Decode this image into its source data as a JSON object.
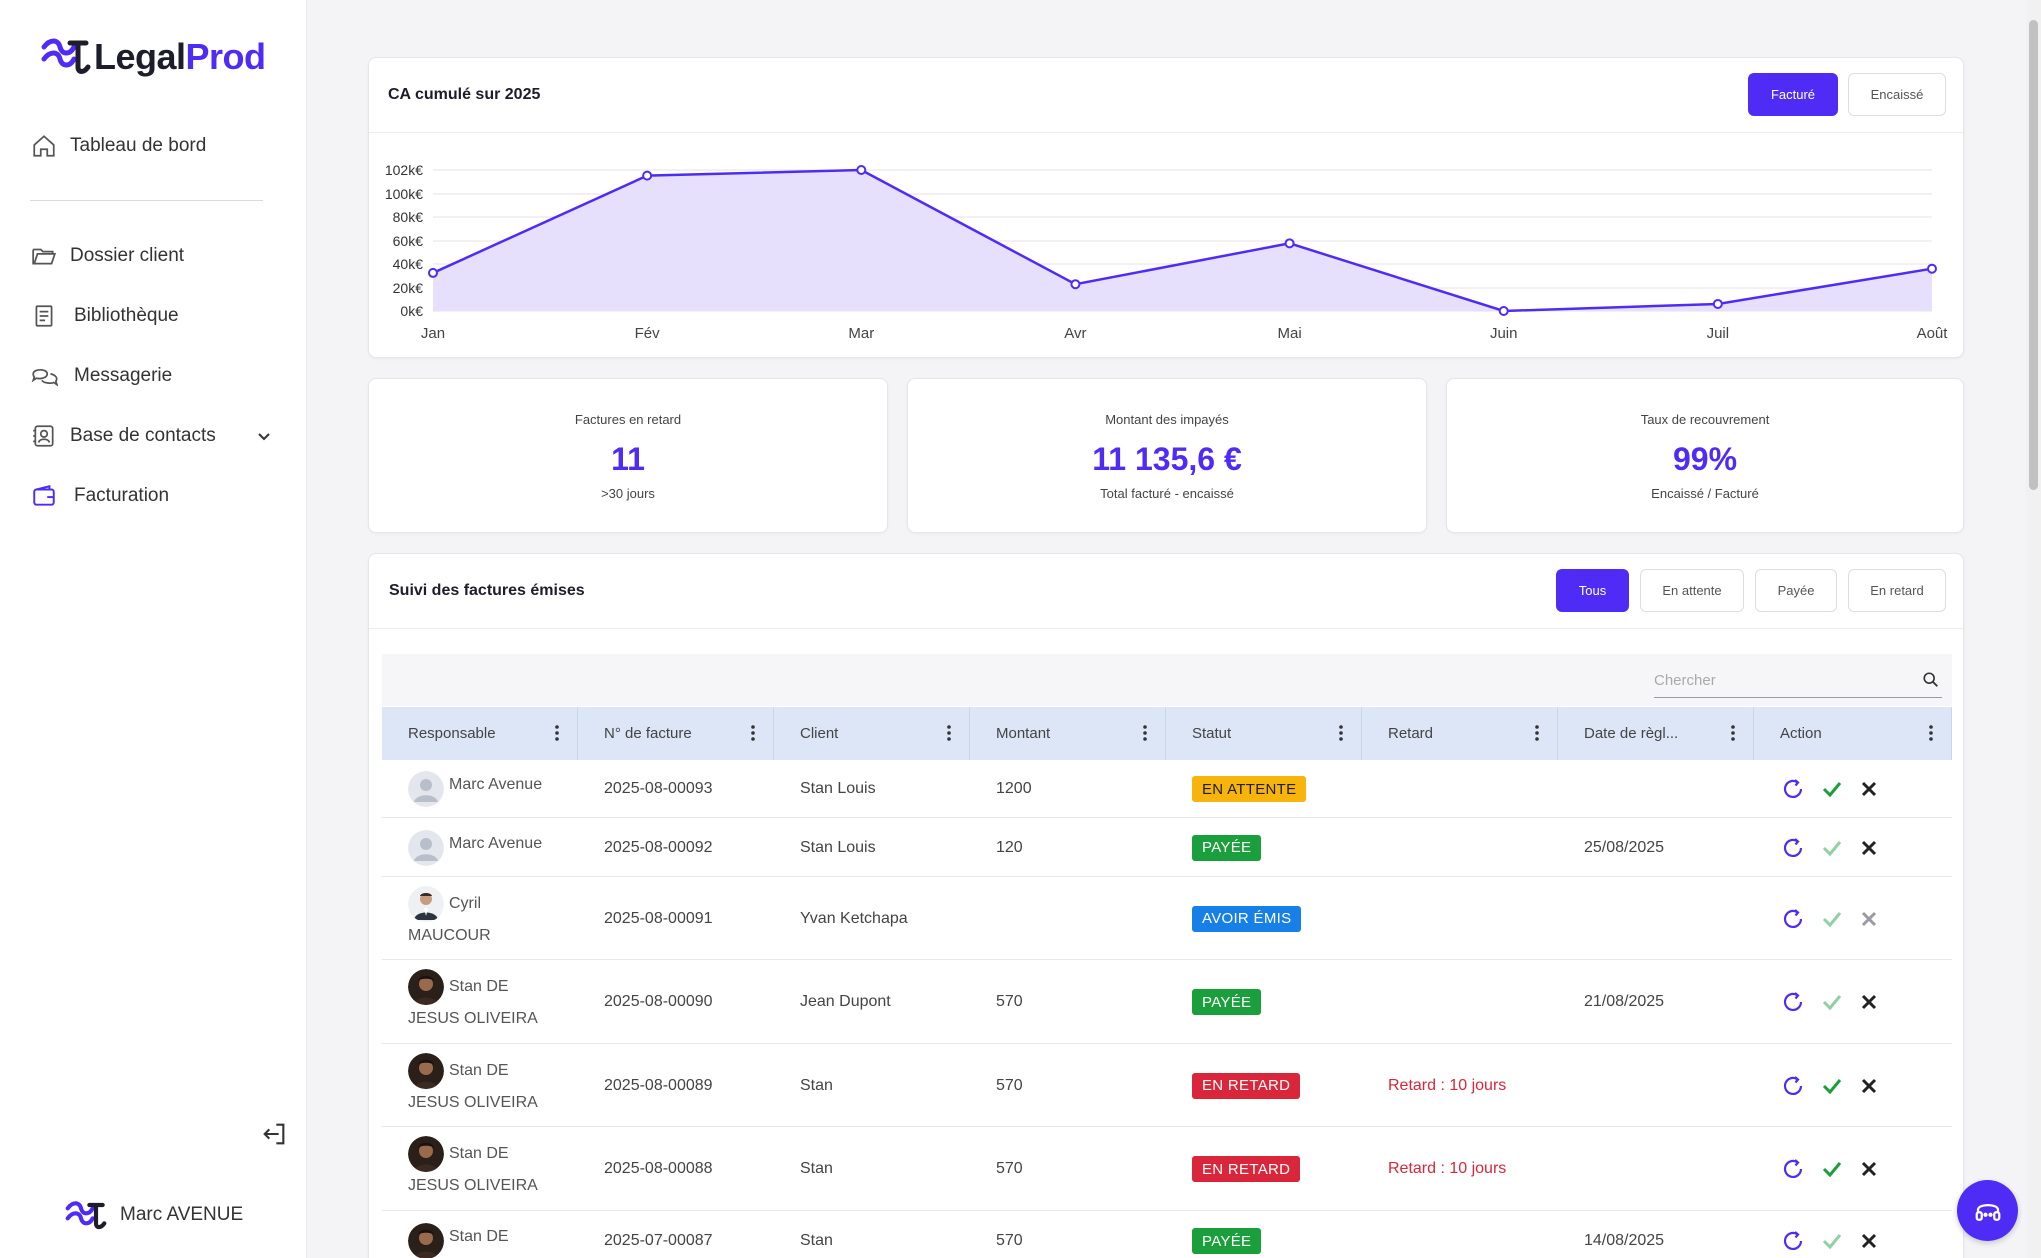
{
  "brand": {
    "name_part1": "Legal",
    "name_part2": "Prod",
    "accent": "#4f2cf5"
  },
  "sidebar": {
    "items": [
      {
        "label": "Tableau de bord",
        "icon": "home-icon"
      },
      {
        "label": "Dossier client",
        "icon": "folder-icon"
      },
      {
        "label": "Bibliothèque",
        "icon": "book-icon"
      },
      {
        "label": "Messagerie",
        "icon": "chat-icon"
      },
      {
        "label": "Base de contacts",
        "icon": "contacts-icon"
      },
      {
        "label": "Facturation",
        "icon": "wallet-icon"
      }
    ],
    "user_name": "Marc AVENUE"
  },
  "ca_chart": {
    "title": "CA cumulé sur 2025",
    "toggle": {
      "facture": "Facturé",
      "encaisse": "Encaissé",
      "active": "Facturé"
    }
  },
  "chart_data": {
    "type": "area",
    "x": [
      "Jan",
      "Fév",
      "Mar",
      "Avr",
      "Mai",
      "Juin",
      "Juil",
      "Août"
    ],
    "values": [
      27,
      96,
      110,
      19,
      48,
      0,
      5,
      30
    ],
    "y_ticks": [
      "0k€",
      "20k€",
      "40k€",
      "60k€",
      "80k€",
      "100k€",
      "102k€"
    ],
    "ylim": [
      0,
      120
    ],
    "grid": true,
    "line_color": "#4f2cf5",
    "fill_color": "#e6e0fd"
  },
  "kpis": [
    {
      "label": "Factures en retard",
      "value": "11",
      "sub": ">30 jours"
    },
    {
      "label": "Montant des impayés",
      "value": "11 135,6 €",
      "sub": "Total facturé - encaissé"
    },
    {
      "label": "Taux de recouvrement",
      "value": "99%",
      "sub": "Encaissé / Facturé"
    }
  ],
  "invoices": {
    "title": "Suivi des factures émises",
    "filters": [
      "Tous",
      "En attente",
      "Payée",
      "En retard"
    ],
    "active_filter": "Tous",
    "search_placeholder": "Chercher",
    "columns": [
      "Responsable",
      "N° de facture",
      "Client",
      "Montant",
      "Statut",
      "Retard",
      "Date de règl...",
      "Action"
    ],
    "rows": [
      {
        "resp1": "Marc Avenue",
        "resp2": "",
        "num": "2025-08-00093",
        "client": "Stan Louis",
        "montant": "1200",
        "statut": "EN ATTENTE",
        "retard": "",
        "date": ""
      },
      {
        "resp1": "Marc Avenue",
        "resp2": "",
        "num": "2025-08-00092",
        "client": "Stan Louis",
        "montant": "120",
        "statut": "PAYÉE",
        "retard": "",
        "date": "25/08/2025"
      },
      {
        "resp1": "Cyril",
        "resp2": "MAUCOUR",
        "num": "2025-08-00091",
        "client": "Yvan Ketchapa",
        "montant": "",
        "statut": "AVOIR ÉMIS",
        "retard": "",
        "date": ""
      },
      {
        "resp1": "Stan DE",
        "resp2": "JESUS OLIVEIRA",
        "num": "2025-08-00090",
        "client": "Jean Dupont",
        "montant": "570",
        "statut": "PAYÉE",
        "retard": "",
        "date": "21/08/2025"
      },
      {
        "resp1": "Stan DE",
        "resp2": "JESUS OLIVEIRA",
        "num": "2025-08-00089",
        "client": "Stan",
        "montant": "570",
        "statut": "EN RETARD",
        "retard": "Retard : 10 jours",
        "date": ""
      },
      {
        "resp1": "Stan DE",
        "resp2": "JESUS OLIVEIRA",
        "num": "2025-08-00088",
        "client": "Stan",
        "montant": "570",
        "statut": "EN RETARD",
        "retard": "Retard : 10 jours",
        "date": ""
      },
      {
        "resp1": "Stan DE",
        "resp2": "",
        "num": "2025-07-00087",
        "client": "Stan",
        "montant": "570",
        "statut": "PAYÉE",
        "retard": "",
        "date": "14/08/2025"
      }
    ]
  }
}
